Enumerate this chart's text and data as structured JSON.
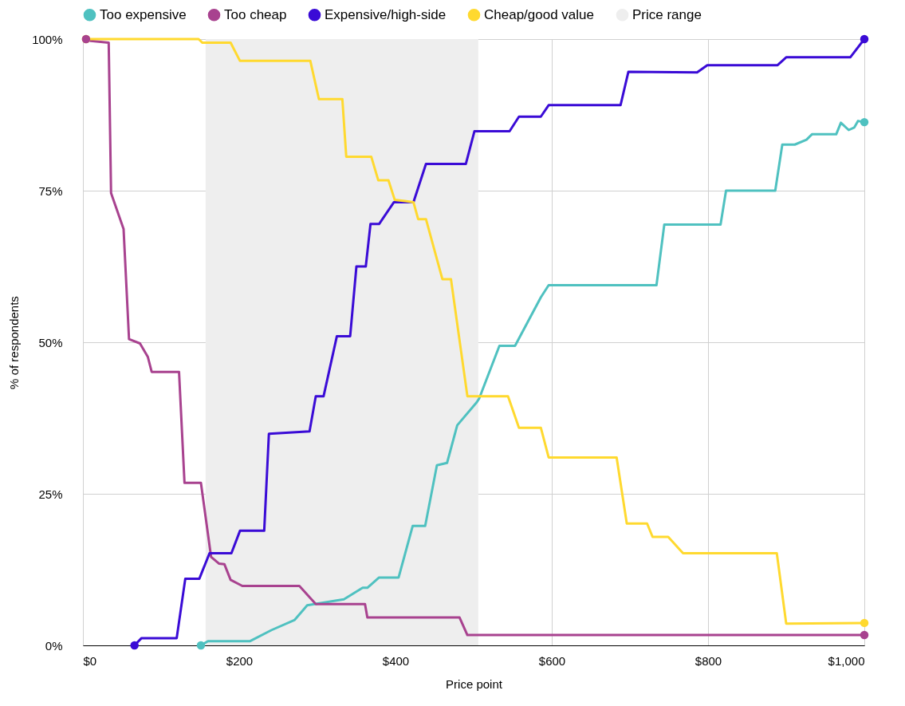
{
  "chart_data": {
    "type": "line",
    "xlabel": "Price point",
    "ylabel": "% of respondents",
    "xlim": [
      0,
      1000
    ],
    "ylim": [
      0,
      100
    ],
    "xticks": [
      {
        "value": 0,
        "label": "$0"
      },
      {
        "value": 200,
        "label": "$200"
      },
      {
        "value": 400,
        "label": "$400"
      },
      {
        "value": 600,
        "label": "$600"
      },
      {
        "value": 800,
        "label": "$800"
      },
      {
        "value": 1000,
        "label": "$1,000"
      }
    ],
    "yticks": [
      {
        "value": 0,
        "label": "0%"
      },
      {
        "value": 25,
        "label": "25%"
      },
      {
        "value": 50,
        "label": "50%"
      },
      {
        "value": 75,
        "label": "75%"
      },
      {
        "value": 100,
        "label": "100%"
      }
    ],
    "grid": true,
    "legend": "top",
    "line_style": "solid",
    "bands": [
      {
        "axis": "x",
        "from": 157,
        "to": 506,
        "label": "Price range",
        "color": "#eeeeee"
      }
    ],
    "series": [
      {
        "name": "Too expensive",
        "color": "#4fc1c0",
        "x": [
          151,
          160,
          214,
          241,
          271,
          287,
          334,
          358,
          364,
          379,
          404,
          422,
          438,
          453,
          466,
          479,
          504,
          507,
          533,
          553,
          586,
          596,
          734,
          744,
          816,
          823,
          886,
          895,
          911,
          926,
          933,
          964,
          970,
          980,
          987,
          992,
          1000
        ],
        "values": [
          0,
          0.7,
          0.7,
          2.5,
          4.2,
          6.6,
          7.6,
          9.5,
          9.5,
          11.2,
          11.2,
          19.7,
          19.7,
          29.7,
          30.1,
          36.3,
          40.1,
          40.7,
          49.4,
          49.4,
          57.4,
          59.4,
          59.4,
          69.4,
          69.4,
          75,
          75,
          82.6,
          82.6,
          83.4,
          84.3,
          84.3,
          86.2,
          85,
          85.4,
          86.5,
          86.3
        ]
      },
      {
        "name": "Too cheap",
        "color": "#a8428f",
        "x": [
          4,
          10,
          33,
          36,
          52,
          59,
          73,
          83,
          88,
          123,
          130,
          151,
          164,
          174,
          181,
          189,
          204,
          277,
          298,
          361,
          364,
          482,
          492,
          1000
        ],
        "values": [
          100,
          99.7,
          99.4,
          74.6,
          68.7,
          50.5,
          49.8,
          47.6,
          45.1,
          45.1,
          26.8,
          26.8,
          14.6,
          13.5,
          13.4,
          10.8,
          9.8,
          9.8,
          6.8,
          6.8,
          4.6,
          4.6,
          1.7,
          1.7
        ]
      },
      {
        "name": "Expensive/high-side",
        "color": "#3a0bd6",
        "x": [
          66,
          75,
          120,
          131,
          149,
          162,
          190,
          201,
          232,
          238,
          290,
          298,
          308,
          325,
          342,
          350,
          362,
          368,
          379,
          398,
          423,
          439,
          490,
          501,
          546,
          558,
          586,
          596,
          688,
          698,
          786,
          799,
          889,
          900,
          982,
          1000
        ],
        "values": [
          0,
          1.2,
          1.2,
          11,
          11,
          15.2,
          15.2,
          18.9,
          18.9,
          34.9,
          35.3,
          41.1,
          41.1,
          51,
          51,
          62.5,
          62.5,
          69.5,
          69.5,
          73.1,
          73.1,
          79.4,
          79.4,
          84.8,
          84.8,
          87.2,
          87.2,
          89.1,
          89.1,
          94.6,
          94.5,
          95.7,
          95.7,
          97,
          97,
          100
        ]
      },
      {
        "name": "Cheap/good value",
        "color": "#ffd92f",
        "x": [
          4,
          148,
          153,
          189,
          201,
          291,
          302,
          332,
          337,
          369,
          378,
          391,
          399,
          423,
          429,
          439,
          460,
          471,
          492,
          544,
          558,
          586,
          596,
          683,
          696,
          722,
          729,
          749,
          768,
          888,
          900,
          1000
        ],
        "values": [
          100,
          100,
          99.4,
          99.4,
          96.4,
          96.4,
          90.1,
          90.1,
          80.6,
          80.6,
          76.7,
          76.7,
          73.5,
          73.1,
          70.3,
          70.3,
          60.4,
          60.4,
          41.1,
          41.1,
          35.9,
          35.9,
          31,
          31,
          20.1,
          20.1,
          17.9,
          17.9,
          15.2,
          15.2,
          3.6,
          3.7
        ]
      }
    ]
  }
}
